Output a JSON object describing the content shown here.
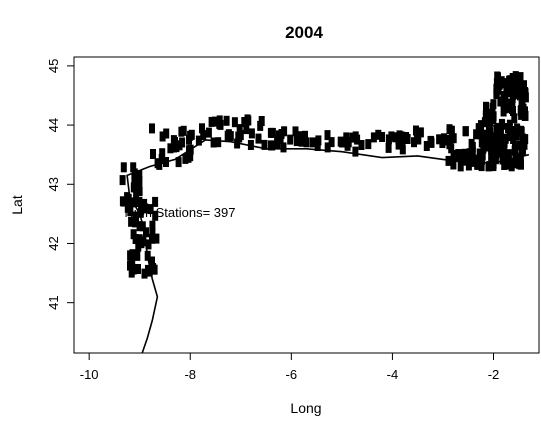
{
  "chart_data": {
    "type": "scatter",
    "title": "2004",
    "xlabel": "Long",
    "ylabel": "Lat",
    "xlim": [
      -10.3,
      -1.1
    ],
    "ylim": [
      40.15,
      45.15
    ],
    "x_ticks": [
      -10,
      -8,
      -6,
      -4,
      -2
    ],
    "x_tick_labels": [
      "-10",
      "-8",
      "-6",
      "-4",
      "-2"
    ],
    "y_ticks": [
      41,
      42,
      43,
      44,
      45
    ],
    "y_tick_labels": [
      "41",
      "42",
      "43",
      "44",
      "45"
    ],
    "grid": false,
    "legend": "none",
    "point_color": "#000000",
    "annotation": {
      "text": "Num Stations= 397",
      "x": -9.3,
      "y": 42.45
    },
    "coastline": [
      [
        -1.3,
        43.5
      ],
      [
        -1.9,
        43.38
      ],
      [
        -2.4,
        43.35
      ],
      [
        -3.0,
        43.42
      ],
      [
        -3.5,
        43.48
      ],
      [
        -4.2,
        43.45
      ],
      [
        -5.0,
        43.55
      ],
      [
        -5.7,
        43.6
      ],
      [
        -6.5,
        43.6
      ],
      [
        -7.2,
        43.72
      ],
      [
        -7.7,
        43.75
      ],
      [
        -8.3,
        43.42
      ],
      [
        -8.8,
        43.3
      ],
      [
        -9.25,
        43.15
      ],
      [
        -9.2,
        42.8
      ],
      [
        -9.0,
        42.5
      ],
      [
        -8.9,
        42.2
      ],
      [
        -8.85,
        41.8
      ],
      [
        -8.75,
        41.4
      ],
      [
        -8.65,
        41.1
      ],
      [
        -8.75,
        40.7
      ],
      [
        -8.85,
        40.4
      ],
      [
        -8.95,
        40.15
      ]
    ],
    "point_bands": [
      {
        "x": [
          -4.0,
          -1.3
        ],
        "y": [
          43.6,
          43.95
        ],
        "n": 40
      },
      {
        "x": [
          -5.5,
          -3.0
        ],
        "y": [
          43.55,
          43.85
        ],
        "n": 35
      },
      {
        "x": [
          -6.5,
          -5.5
        ],
        "y": [
          43.62,
          43.9
        ],
        "n": 20
      },
      {
        "x": [
          -7.8,
          -6.5
        ],
        "y": [
          43.65,
          44.1
        ],
        "n": 30
      },
      {
        "x": [
          -8.8,
          -7.8
        ],
        "y": [
          43.3,
          43.95
        ],
        "n": 28
      },
      {
        "x": [
          -9.35,
          -9.0
        ],
        "y": [
          42.6,
          43.3
        ],
        "n": 22
      },
      {
        "x": [
          -9.2,
          -8.65
        ],
        "y": [
          41.45,
          42.75
        ],
        "n": 45
      },
      {
        "x": [
          -2.9,
          -1.4
        ],
        "y": [
          43.3,
          43.55
        ],
        "n": 55
      },
      {
        "x": [
          -2.25,
          -1.35
        ],
        "y": [
          43.55,
          44.5
        ],
        "n": 80
      },
      {
        "x": [
          -1.95,
          -1.3
        ],
        "y": [
          44.5,
          44.85
        ],
        "n": 42
      }
    ]
  }
}
